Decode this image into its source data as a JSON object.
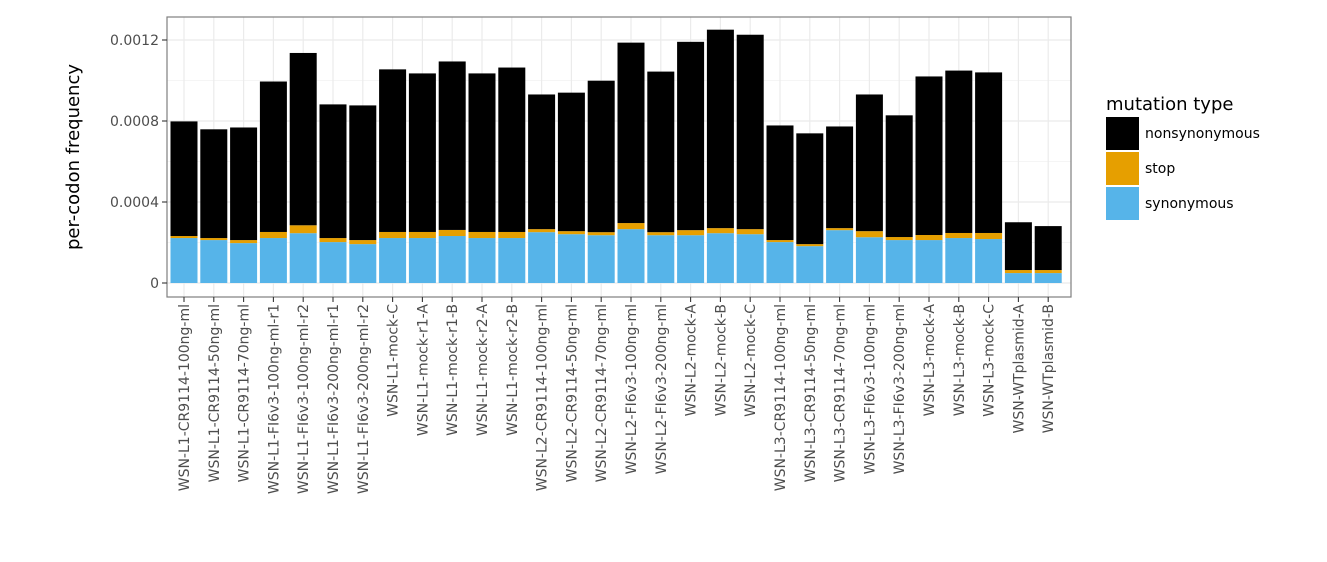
{
  "chart_data": {
    "type": "bar",
    "stacked": true,
    "title": "",
    "xlabel": "",
    "ylabel": "per-codon frequency",
    "ylim": [
      0,
      0.0013
    ],
    "yticks": [
      0,
      0.0004,
      0.0008,
      0.0012
    ],
    "ytick_labels": [
      "0",
      "0.0004",
      "0.0008",
      "0.0012"
    ],
    "grid": true,
    "legend": {
      "title": "mutation type",
      "position": "right"
    },
    "categories": [
      "WSN-L1-CR9114-100ng-ml",
      "WSN-L1-CR9114-50ng-ml",
      "WSN-L1-CR9114-70ng-ml",
      "WSN-L1-FI6v3-100ng-ml-r1",
      "WSN-L1-FI6v3-100ng-ml-r2",
      "WSN-L1-FI6v3-200ng-ml-r1",
      "WSN-L1-FI6v3-200ng-ml-r2",
      "WSN-L1-mock-C",
      "WSN-L1-mock-r1-A",
      "WSN-L1-mock-r1-B",
      "WSN-L1-mock-r2-A",
      "WSN-L1-mock-r2-B",
      "WSN-L2-CR9114-100ng-ml",
      "WSN-L2-CR9114-50ng-ml",
      "WSN-L2-CR9114-70ng-ml",
      "WSN-L2-FI6v3-100ng-ml",
      "WSN-L2-FI6v3-200ng-ml",
      "WSN-L2-mock-A",
      "WSN-L2-mock-B",
      "WSN-L2-mock-C",
      "WSN-L3-CR9114-100ng-ml",
      "WSN-L3-CR9114-50ng-ml",
      "WSN-L3-CR9114-70ng-ml",
      "WSN-L3-FI6v3-100ng-ml",
      "WSN-L3-FI6v3-200ng-ml",
      "WSN-L3-mock-A",
      "WSN-L3-mock-B",
      "WSN-L3-mock-C",
      "WSN-WTplasmid-A",
      "WSN-WTplasmid-B"
    ],
    "series": [
      {
        "name": "synonymous",
        "color": "#56B4E9",
        "values": [
          0.000222,
          0.000212,
          0.000197,
          0.000222,
          0.000246,
          0.000202,
          0.000192,
          0.000222,
          0.000222,
          0.000232,
          0.000222,
          0.000222,
          0.000251,
          0.000241,
          0.000236,
          0.000266,
          0.000236,
          0.000236,
          0.000246,
          0.000241,
          0.000202,
          0.000182,
          0.000261,
          0.000226,
          0.000212,
          0.000212,
          0.000222,
          0.000217,
          4.9e-05,
          4.9e-05
        ]
      },
      {
        "name": "stop",
        "color": "#E69F00",
        "values": [
          1e-05,
          1e-05,
          1.5e-05,
          3e-05,
          3.9e-05,
          2e-05,
          2e-05,
          3e-05,
          3e-05,
          3e-05,
          3e-05,
          3e-05,
          1.5e-05,
          1.5e-05,
          1.5e-05,
          3e-05,
          1.5e-05,
          2.5e-05,
          2.5e-05,
          2.5e-05,
          1e-05,
          1e-05,
          1e-05,
          3e-05,
          1.5e-05,
          2.5e-05,
          2.5e-05,
          3e-05,
          1.5e-05,
          1.5e-05
        ]
      },
      {
        "name": "nonsynonymous",
        "color": "#000000",
        "values": [
          0.000566,
          0.000537,
          0.000556,
          0.000743,
          0.000851,
          0.00066,
          0.000665,
          0.000803,
          0.000783,
          0.000832,
          0.000783,
          0.000812,
          0.000665,
          0.000684,
          0.000748,
          0.000891,
          0.000793,
          0.00093,
          0.00098,
          0.00096,
          0.000566,
          0.000547,
          0.000502,
          0.000675,
          0.000601,
          0.000783,
          0.000802,
          0.000793,
          0.000236,
          0.000217
        ]
      }
    ]
  }
}
